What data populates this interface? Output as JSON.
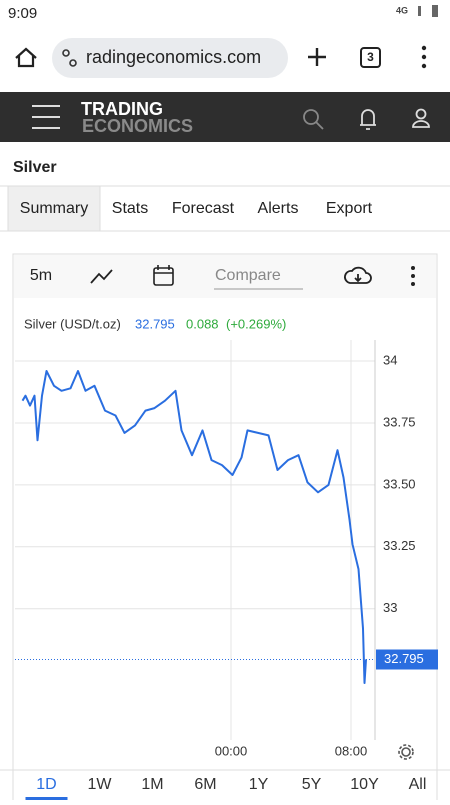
{
  "status": {
    "time": "9:09",
    "network": "4G"
  },
  "browser": {
    "url": "radingeconomics.com",
    "tabs": "3"
  },
  "header": {
    "logo_line1": "TRADING",
    "logo_line2": "ECONOMICS"
  },
  "page": {
    "title": "Silver",
    "tabs": [
      "Summary",
      "Stats",
      "Forecast",
      "Alerts",
      "Export"
    ]
  },
  "toolbar": {
    "interval": "5m",
    "compare": "Compare"
  },
  "chart_data": {
    "type": "line",
    "price": 32.795,
    "change": 0.088,
    "change_pct": {
      "value": 0.269,
      "label": "(+0.269%)"
    },
    "x": [
      -13.9,
      -13.7,
      -13.4,
      -13.1,
      -12.9,
      -12.6,
      -12.3,
      -11.8,
      -11.3,
      -10.7,
      -10.2,
      -9.7,
      -9.1,
      -8.4,
      -7.7,
      -7.1,
      -6.4,
      -5.7,
      -5.1,
      -4.4,
      -3.7,
      -3.3,
      -2.6,
      -1.9,
      -1.3,
      -0.6,
      0.1,
      0.7,
      1.1,
      1.8,
      2.5,
      3.1,
      3.8,
      4.5,
      5.1,
      5.8,
      6.5,
      7.1,
      7.5,
      7.9,
      8.1,
      8.5,
      8.7,
      8.8,
      8.9,
      9.0
    ],
    "series": [
      {
        "name": "Silver (USD/t.oz)",
        "color": "#2a6ee0",
        "values": [
          33.84,
          33.86,
          33.82,
          33.86,
          33.68,
          33.86,
          33.96,
          33.9,
          33.88,
          33.89,
          33.96,
          33.88,
          33.9,
          33.8,
          33.78,
          33.71,
          33.74,
          33.8,
          33.81,
          33.84,
          33.88,
          33.72,
          33.62,
          33.72,
          33.6,
          33.58,
          33.54,
          33.61,
          33.72,
          33.71,
          33.7,
          33.56,
          33.6,
          33.62,
          33.51,
          33.47,
          33.5,
          33.64,
          33.53,
          33.36,
          33.26,
          33.16,
          33.0,
          32.92,
          32.7,
          32.795
        ]
      }
    ],
    "xlim": [
      -14.4,
      9.6
    ],
    "ylim": [
      32.47,
      34.085
    ],
    "xticks": [
      {
        "value": 0,
        "label": "00:00"
      },
      {
        "value": 8,
        "label": "08:00"
      }
    ],
    "yticks": [
      34,
      33.75,
      {
        "value": 33.5,
        "label": "33.50"
      },
      33.25,
      33
    ],
    "grid": true
  },
  "ranges": [
    "1D",
    "1W",
    "1M",
    "6M",
    "1Y",
    "5Y",
    "10Y",
    "All"
  ]
}
